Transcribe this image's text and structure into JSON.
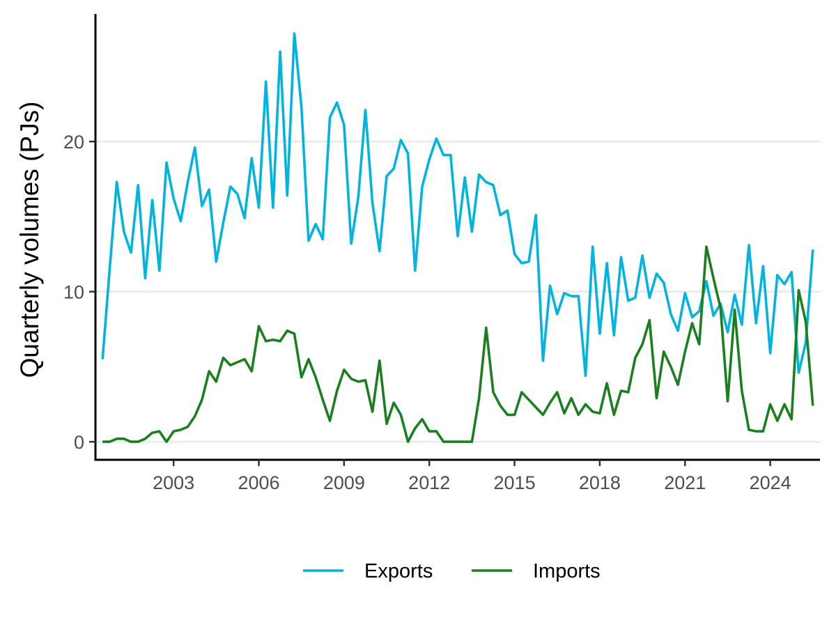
{
  "chart_data": {
    "type": "line",
    "title": "",
    "xlabel": "",
    "ylabel": "Quarterly volumes (PJs)",
    "xlim": [
      2000.25,
      2025.75
    ],
    "ylim": [
      -1.2,
      28.5
    ],
    "x_ticks": [
      2003,
      2006,
      2009,
      2012,
      2015,
      2018,
      2021,
      2024
    ],
    "y_ticks": [
      0,
      10,
      20
    ],
    "grid": "horizontal-major",
    "legend_position": "bottom",
    "x_start": 2000.5,
    "x_step": 0.25,
    "series": [
      {
        "name": "Exports",
        "color": "#00B4E0",
        "values": [
          5.5,
          11.5,
          17.3,
          14.0,
          12.6,
          17.1,
          10.9,
          16.1,
          11.4,
          18.6,
          16.2,
          14.7,
          17.3,
          19.6,
          15.7,
          16.8,
          12.0,
          14.6,
          17.0,
          16.5,
          14.9,
          18.9,
          15.6,
          24.0,
          15.6,
          26.0,
          16.4,
          27.2,
          22.3,
          13.4,
          14.5,
          13.5,
          21.6,
          22.6,
          21.1,
          13.2,
          16.3,
          22.1,
          15.9,
          12.7,
          17.7,
          18.2,
          20.1,
          19.2,
          11.4,
          17.0,
          18.8,
          20.2,
          19.1,
          19.1,
          13.7,
          17.6,
          14.0,
          17.8,
          17.3,
          17.1,
          15.1,
          15.4,
          12.5,
          11.9,
          12.0,
          15.1,
          5.4,
          10.4,
          8.5,
          9.9,
          9.7,
          9.7,
          4.4,
          13.0,
          7.2,
          11.9,
          7.1,
          12.3,
          9.4,
          9.6,
          12.4,
          9.6,
          11.2,
          10.6,
          8.5,
          7.4,
          9.9,
          8.3,
          8.7,
          10.7,
          8.4,
          9.2,
          7.3,
          9.8,
          7.8,
          13.1,
          7.9,
          11.7,
          5.9,
          11.1,
          10.5,
          11.3,
          4.6,
          6.6,
          12.8
        ]
      },
      {
        "name": "Imports",
        "color": "#1A7F1E",
        "values": [
          0.0,
          0.0,
          0.2,
          0.2,
          0.0,
          0.0,
          0.2,
          0.6,
          0.7,
          0.0,
          0.7,
          0.8,
          1.0,
          1.7,
          2.8,
          4.7,
          4.0,
          5.6,
          5.1,
          5.3,
          5.5,
          4.7,
          7.7,
          6.7,
          6.8,
          6.7,
          7.4,
          7.2,
          4.3,
          5.5,
          4.3,
          2.8,
          1.4,
          3.4,
          4.8,
          4.2,
          4.0,
          4.1,
          2.0,
          5.4,
          1.2,
          2.6,
          1.8,
          0.0,
          0.9,
          1.5,
          0.7,
          0.7,
          0.0,
          0.0,
          0.0,
          0.0,
          0.0,
          2.9,
          7.6,
          3.3,
          2.4,
          1.8,
          1.8,
          3.3,
          2.8,
          2.3,
          1.8,
          2.6,
          3.3,
          1.9,
          2.9,
          1.8,
          2.5,
          2.0,
          1.9,
          3.9,
          1.8,
          3.4,
          3.3,
          5.6,
          6.5,
          8.1,
          2.9,
          6.0,
          5.0,
          3.8,
          6.0,
          7.9,
          6.5,
          13.0,
          10.9,
          8.9,
          2.7,
          8.8,
          3.4,
          0.8,
          0.7,
          0.7,
          2.5,
          1.4,
          2.5,
          1.5,
          10.1,
          8.0,
          2.4
        ]
      }
    ]
  }
}
